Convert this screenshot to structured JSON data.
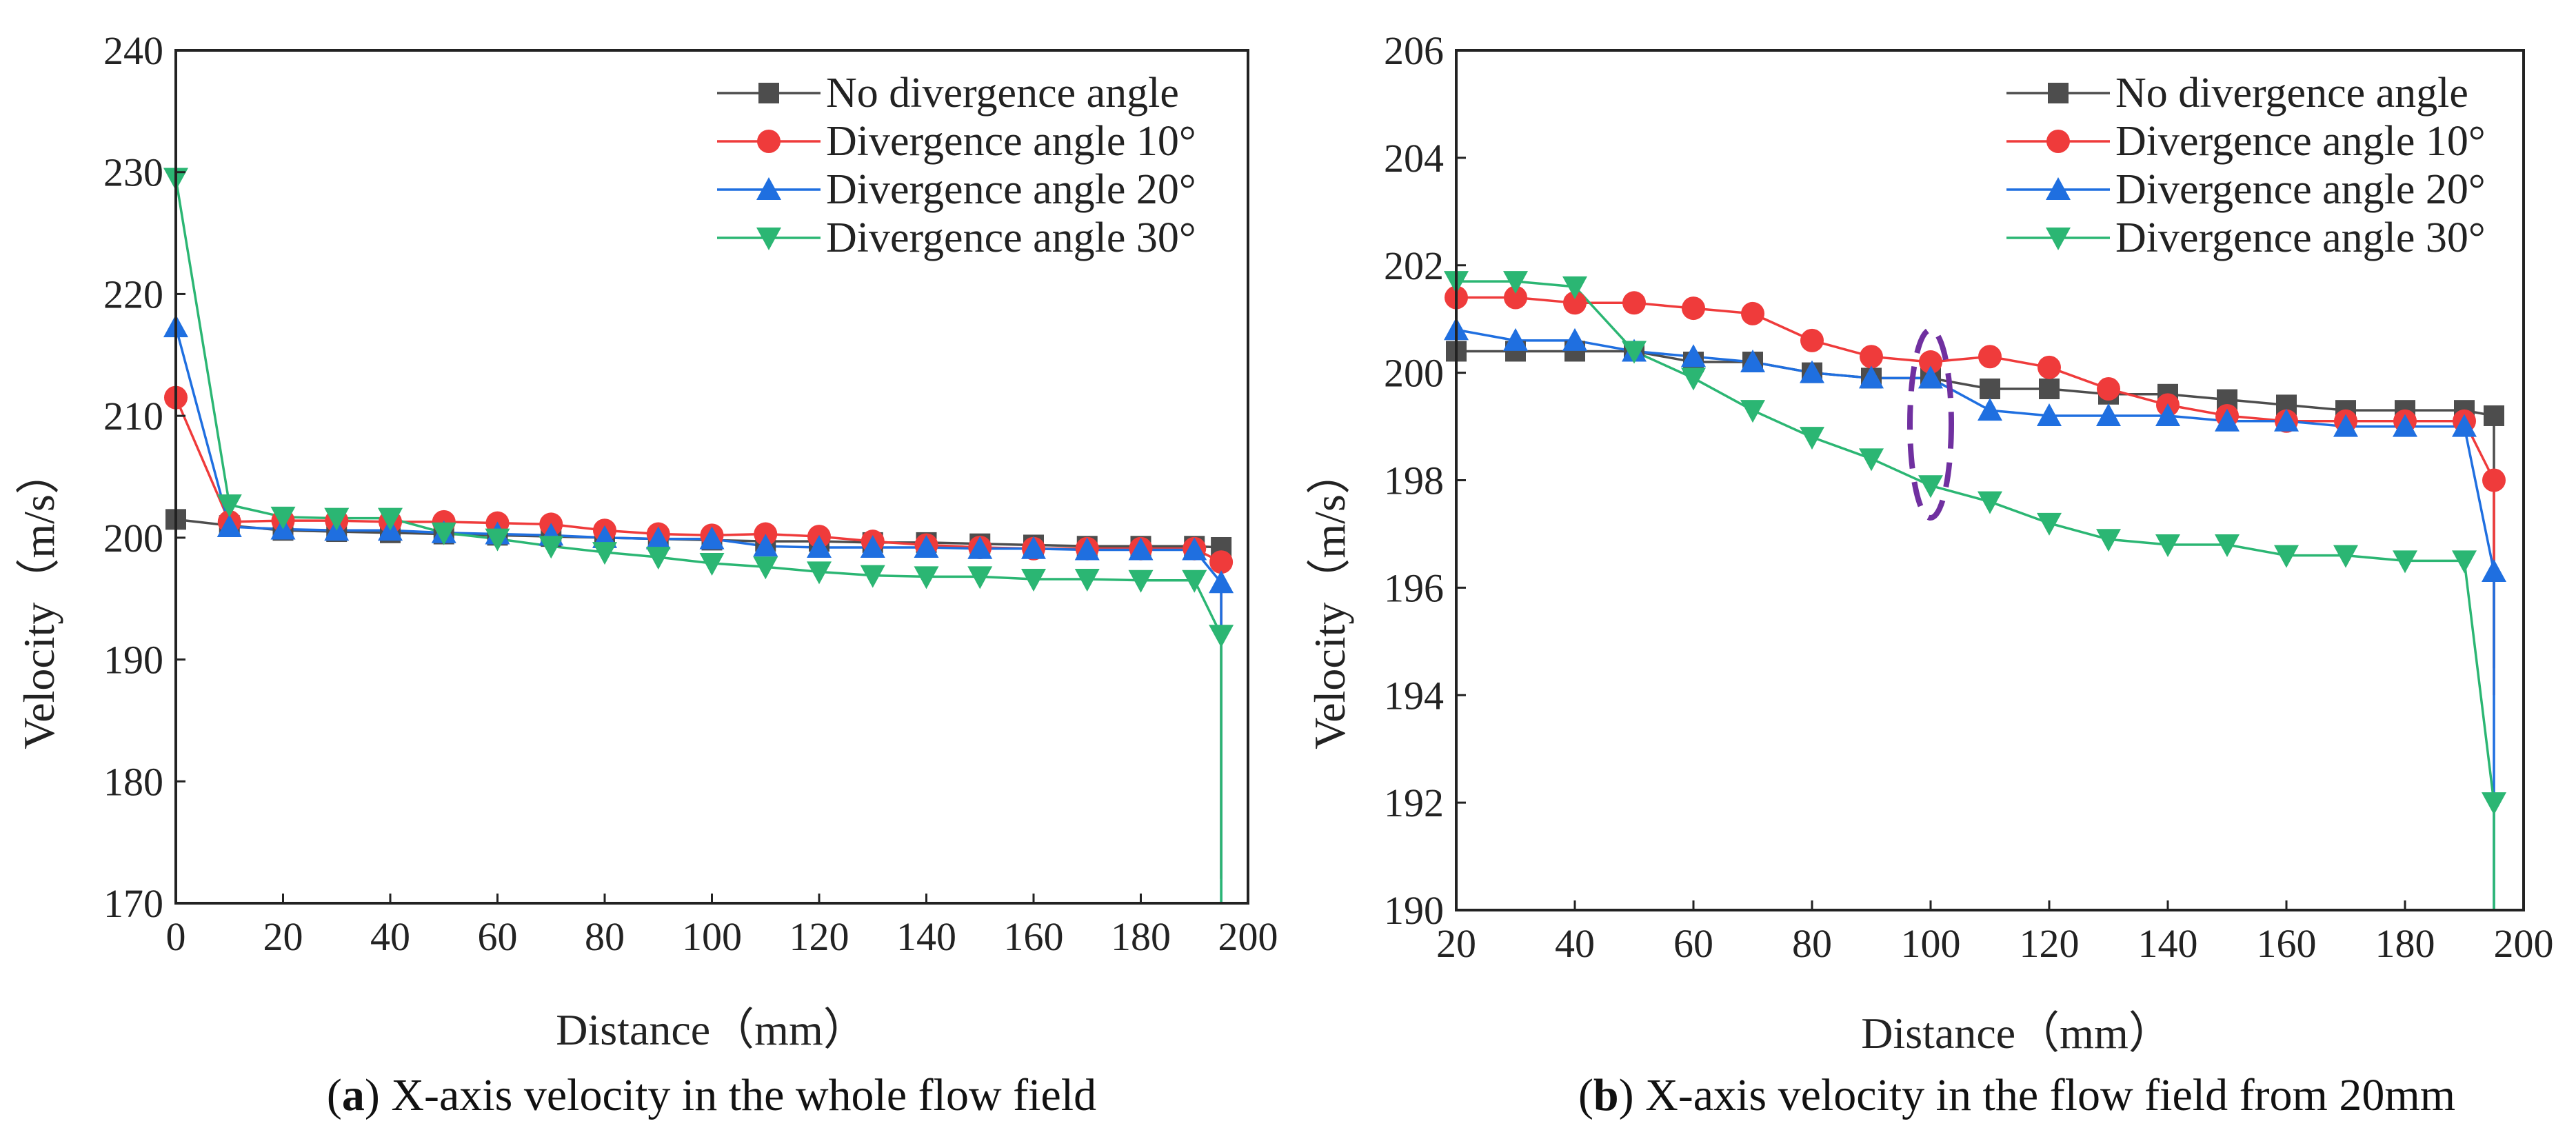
{
  "colors": {
    "series": [
      "#4d4d4d",
      "#ef3b3b",
      "#1f6fe0",
      "#2bb673"
    ],
    "frame": "#222222",
    "annotation": "#7030a0"
  },
  "chart_data": [
    {
      "type": "line",
      "panel": "a",
      "caption_letter": "a",
      "caption": "X-axis velocity in the whole flow field",
      "xlabel": "Distance（mm）",
      "ylabel": "Velocity（m/s）",
      "xlim": [
        0,
        200
      ],
      "ylim": [
        170,
        240
      ],
      "xticks": [
        "0",
        "20",
        "40",
        "60",
        "80",
        "100",
        "120",
        "140",
        "160",
        "180",
        "200"
      ],
      "yticks": [
        "170",
        "180",
        "190",
        "200",
        "210",
        "220",
        "230",
        "240"
      ],
      "legend_position": "top-right",
      "series": [
        {
          "name": "No divergence angle",
          "marker": "square",
          "x": [
            0,
            10,
            20,
            30,
            40,
            50,
            60,
            70,
            80,
            90,
            100,
            110,
            120,
            130,
            140,
            150,
            160,
            170,
            180,
            190,
            195,
            195
          ],
          "y": [
            201.5,
            201,
            200.6,
            200.5,
            200.4,
            200.3,
            200.2,
            200.1,
            200,
            199.9,
            199.8,
            199.7,
            199.7,
            199.6,
            199.6,
            199.5,
            199.4,
            199.3,
            199.3,
            199.3,
            199.2,
            172
          ]
        },
        {
          "name": "Divergence angle 10°",
          "marker": "circle",
          "x": [
            0,
            10,
            20,
            30,
            40,
            50,
            60,
            70,
            80,
            90,
            100,
            110,
            120,
            130,
            140,
            150,
            160,
            170,
            180,
            190,
            195,
            195
          ],
          "y": [
            211.5,
            201.3,
            201.4,
            201.4,
            201.3,
            201.3,
            201.2,
            201.1,
            200.6,
            200.3,
            200.2,
            200.3,
            200.1,
            199.7,
            199.4,
            199.2,
            199.1,
            199.1,
            199.1,
            199.1,
            198,
            172
          ]
        },
        {
          "name": "Divergence angle 20°",
          "marker": "triangle-up",
          "x": [
            0,
            10,
            20,
            30,
            40,
            50,
            60,
            70,
            80,
            90,
            100,
            110,
            120,
            130,
            140,
            150,
            160,
            170,
            180,
            190,
            195,
            195
          ],
          "y": [
            217.3,
            200.9,
            200.7,
            200.6,
            200.6,
            200.4,
            200.3,
            200.2,
            200,
            199.9,
            199.9,
            199.3,
            199.2,
            199.2,
            199.2,
            199.1,
            199.1,
            199,
            199,
            199,
            196.3,
            170
          ]
        },
        {
          "name": "Divergence angle 30°",
          "marker": "triangle-down",
          "x": [
            0,
            10,
            20,
            30,
            40,
            50,
            60,
            70,
            80,
            90,
            100,
            110,
            120,
            130,
            140,
            150,
            160,
            170,
            180,
            190,
            195,
            195
          ],
          "y": [
            229.5,
            202.7,
            201.7,
            201.6,
            201.6,
            200.4,
            199.9,
            199.3,
            198.8,
            198.4,
            197.9,
            197.6,
            197.2,
            196.9,
            196.8,
            196.8,
            196.6,
            196.6,
            196.5,
            196.5,
            192,
            170
          ]
        }
      ]
    },
    {
      "type": "line",
      "panel": "b",
      "caption_letter": "b",
      "caption": "X-axis velocity in the flow field from 20mm",
      "xlabel": "Distance（mm）",
      "ylabel": "Velocity（m/s）",
      "xlim": [
        20,
        200
      ],
      "ylim": [
        190,
        206
      ],
      "xticks": [
        "20",
        "40",
        "60",
        "80",
        "100",
        "120",
        "140",
        "160",
        "180",
        "200"
      ],
      "yticks": [
        "190",
        "192",
        "194",
        "196",
        "198",
        "200",
        "202",
        "204",
        "206"
      ],
      "legend_position": "top-right",
      "annotation": "dashed ellipse highlighting the region near x = 100",
      "series": [
        {
          "name": "No divergence angle",
          "marker": "square",
          "x": [
            20,
            30,
            40,
            50,
            60,
            70,
            80,
            90,
            100,
            110,
            120,
            130,
            140,
            150,
            160,
            170,
            180,
            190,
            195,
            195
          ],
          "y": [
            200.4,
            200.4,
            200.4,
            200.4,
            200.2,
            200.2,
            200,
            199.9,
            199.9,
            199.7,
            199.7,
            199.6,
            199.6,
            199.5,
            199.4,
            199.3,
            199.3,
            199.3,
            199.2,
            194.5
          ]
        },
        {
          "name": "Divergence angle 10°",
          "marker": "circle",
          "x": [
            20,
            30,
            40,
            50,
            60,
            70,
            80,
            90,
            100,
            110,
            120,
            130,
            140,
            150,
            160,
            170,
            180,
            190,
            195,
            195
          ],
          "y": [
            201.4,
            201.4,
            201.3,
            201.3,
            201.2,
            201.1,
            200.6,
            200.3,
            200.2,
            200.3,
            200.1,
            199.7,
            199.4,
            199.2,
            199.1,
            199.1,
            199.1,
            199.1,
            198,
            194
          ]
        },
        {
          "name": "Divergence angle 20°",
          "marker": "triangle-up",
          "x": [
            20,
            30,
            40,
            50,
            60,
            70,
            80,
            90,
            100,
            110,
            120,
            130,
            140,
            150,
            160,
            170,
            180,
            190,
            195,
            195
          ],
          "y": [
            200.8,
            200.6,
            200.6,
            200.4,
            200.3,
            200.2,
            200,
            199.9,
            199.9,
            199.3,
            199.2,
            199.2,
            199.2,
            199.1,
            199.1,
            199,
            199,
            199,
            196.3,
            190
          ]
        },
        {
          "name": "Divergence angle 30°",
          "marker": "triangle-down",
          "x": [
            20,
            30,
            40,
            50,
            60,
            70,
            80,
            90,
            100,
            110,
            120,
            130,
            140,
            150,
            160,
            170,
            180,
            190,
            195,
            195
          ],
          "y": [
            201.7,
            201.7,
            201.6,
            200.4,
            199.9,
            199.3,
            198.8,
            198.4,
            197.9,
            197.6,
            197.2,
            196.9,
            196.8,
            196.8,
            196.6,
            196.6,
            196.5,
            196.5,
            192,
            190
          ]
        }
      ]
    }
  ]
}
